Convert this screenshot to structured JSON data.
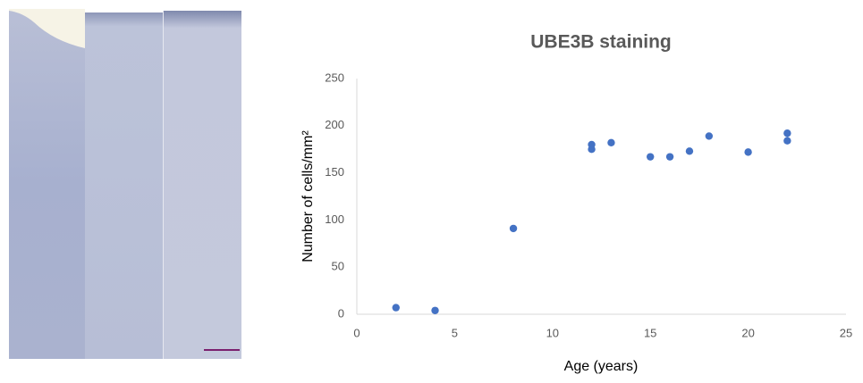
{
  "chart_data": {
    "type": "scatter",
    "title": "UBE3B staining",
    "xlabel": "Age (years)",
    "ylabel": "Number of cells/mm²",
    "x": [
      2,
      4,
      8,
      12,
      12,
      13,
      15,
      16,
      17,
      18,
      20,
      22,
      22
    ],
    "values": [
      7,
      4,
      91,
      180,
      175,
      182,
      167,
      167,
      173,
      189,
      172,
      192,
      184
    ],
    "color": "#4472c4",
    "xlim": [
      0,
      25
    ],
    "xticks": [
      0,
      5,
      10,
      15,
      20,
      25
    ],
    "ylim": [
      0,
      250
    ],
    "yticks": [
      0,
      50,
      100,
      150,
      200,
      250
    ],
    "grid": false
  }
}
